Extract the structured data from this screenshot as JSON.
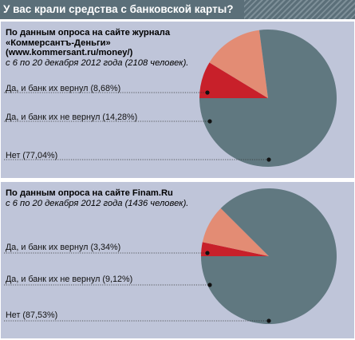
{
  "title": "У вас крали средства с банковской карты?",
  "colors": {
    "header": "#5b6f79",
    "panel": "#bfc5d9",
    "returned": "#c8202a",
    "not_returned": "#e38c74",
    "no": "#607880"
  },
  "chart_data": [
    {
      "type": "pie",
      "source_title": "По данным опроса на сайте журнала «Коммерсантъ-Деньги» (www.kommersant.ru/money/)",
      "source_period": "с 6 по 20 декабря 2012 года (2108 человек).",
      "categories": [
        "Да, и банк их вернул (8,68%)",
        "Да, и банк их не вернул (14,28%)",
        "Нет (77,04%)"
      ],
      "values": [
        8.68,
        14.28,
        77.04
      ]
    },
    {
      "type": "pie",
      "source_title": "По данным опроса на сайте Finam.Ru",
      "source_period": "с 6 по 20 декабря 2012 года (1436 человек).",
      "categories": [
        "Да, и банк их вернул (3,34%)",
        "Да, и банк их не вернул (9,12%)",
        "Нет (87,53%)"
      ],
      "values": [
        3.34,
        9.12,
        87.53
      ]
    }
  ]
}
